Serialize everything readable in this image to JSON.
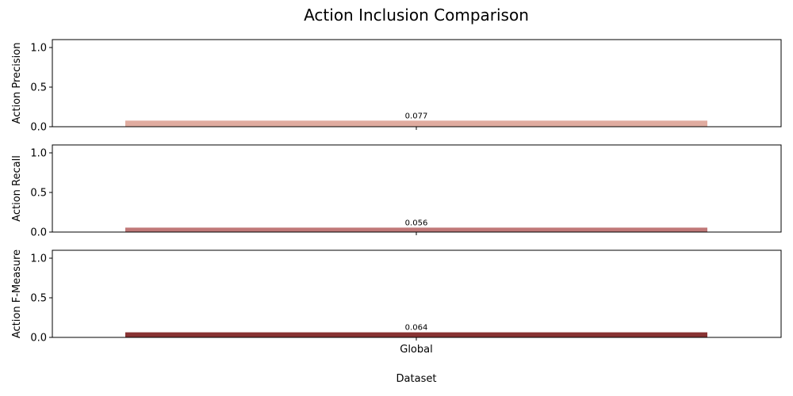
{
  "figure": {
    "title": "Action Inclusion Comparison",
    "xlabel": "Dataset"
  },
  "chart_data": [
    {
      "type": "bar",
      "categories": [
        "Global"
      ],
      "values": [
        0.077
      ],
      "value_labels": [
        "0.077"
      ],
      "ylabel": "Action Precision",
      "ylim": [
        0,
        1.1
      ],
      "yticks": [
        "0.0",
        "0.5",
        "1.0"
      ],
      "color": "#e0aca0",
      "show_category_labels": false
    },
    {
      "type": "bar",
      "categories": [
        "Global"
      ],
      "values": [
        0.056
      ],
      "value_labels": [
        "0.056"
      ],
      "ylabel": "Action Recall",
      "ylim": [
        0,
        1.1
      ],
      "yticks": [
        "0.0",
        "0.5",
        "1.0"
      ],
      "color": "#c07878",
      "show_category_labels": false
    },
    {
      "type": "bar",
      "categories": [
        "Global"
      ],
      "values": [
        0.064
      ],
      "value_labels": [
        "0.064"
      ],
      "ylabel": "Action F-Measure",
      "ylim": [
        0,
        1.1
      ],
      "yticks": [
        "0.0",
        "0.5",
        "1.0"
      ],
      "color": "#883333",
      "show_category_labels": true
    }
  ]
}
